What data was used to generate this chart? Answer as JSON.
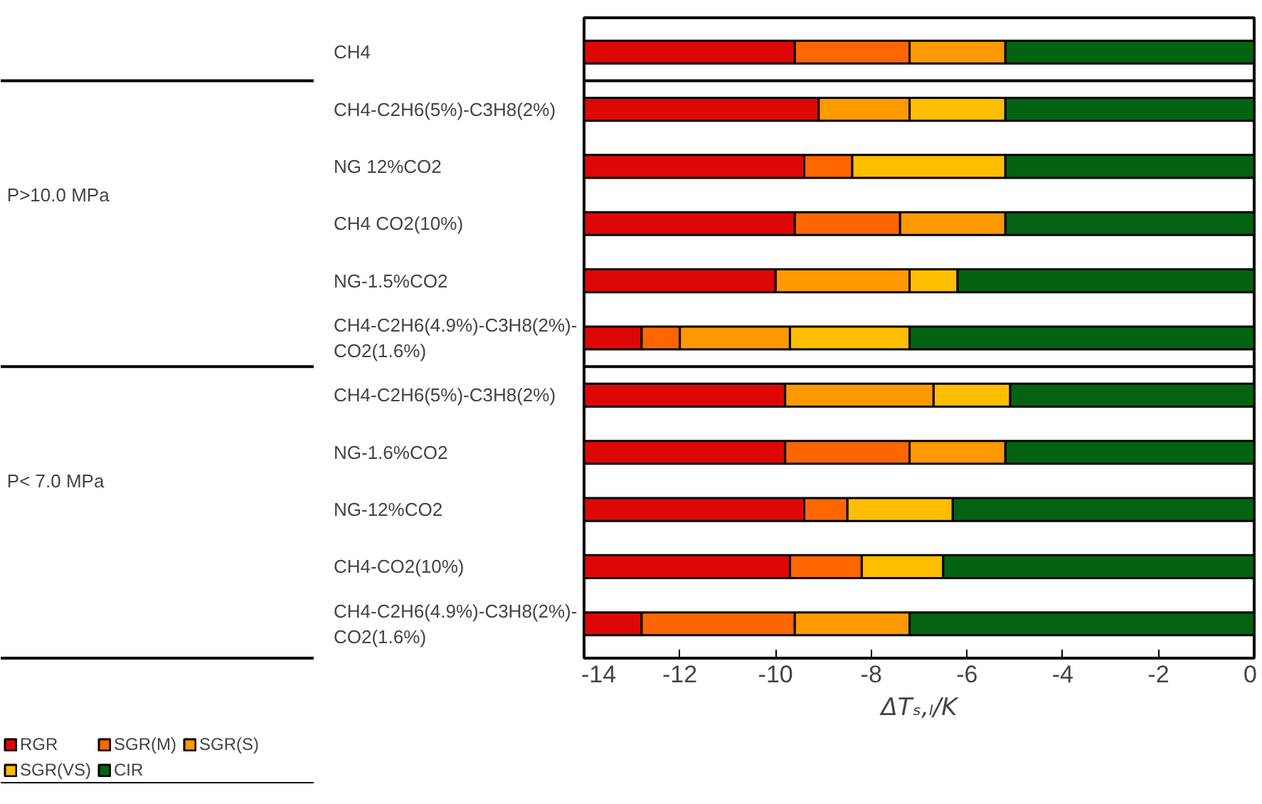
{
  "chart_data": {
    "type": "bar",
    "orientation": "horizontal",
    "stacked": true,
    "categories": [
      "CH4",
      "CH4-C2H6(5%)-C3H8(2%)",
      "NG 12%CO2",
      "CH4 CO2(10%)",
      "NG-1.5%CO2",
      "CH4-C2H6(4.9%)-C3H8(2%)-CO2(1.6%)",
      "CH4-C2H6(5%)-C3H8(2%)",
      "NG-1.6%CO2",
      "NG-12%CO2",
      "CH4-CO2(10%)",
      "CH4-C2H6(4.9%)-C3H8(2%)-CO2(1.6%)"
    ],
    "series": [
      {
        "name": "CIR",
        "color": "#036312",
        "values": [
          -5.2,
          -5.2,
          -5.2,
          -5.2,
          -6.2,
          -7.2,
          -5.1,
          -5.2,
          -6.3,
          -6.5,
          -7.2
        ]
      },
      {
        "name": "SGR(VS)",
        "color": "#ffbf00",
        "values": [
          null,
          -2.0,
          -3.2,
          null,
          -1.0,
          -2.5,
          -1.6,
          null,
          -2.2,
          -1.7,
          null
        ]
      },
      {
        "name": "SGR(S)",
        "color": "#ff9900",
        "values": [
          -2.0,
          -1.9,
          null,
          -2.2,
          -2.8,
          -2.3,
          -3.1,
          -2.0,
          null,
          null,
          -2.4
        ]
      },
      {
        "name": "SGR(M)",
        "color": "#ff6600",
        "values": [
          -2.4,
          null,
          -1.0,
          -2.2,
          null,
          -0.8,
          null,
          -2.6,
          -0.9,
          -1.5,
          -3.2
        ]
      },
      {
        "name": "RGR",
        "color": "#dd0806",
        "values": [
          -4.4,
          -4.9,
          -4.6,
          -4.4,
          -4.0,
          -1.2,
          -4.2,
          -4.2,
          -4.6,
          -4.3,
          -1.2
        ]
      }
    ],
    "xlim": [
      -14,
      0
    ],
    "xticks": [
      -14,
      -12,
      -10,
      -8,
      -6,
      -4,
      -2,
      0
    ],
    "xlabel": "ΔTₛ,ₗ/K",
    "annotations": [
      "P>10.0 MPa",
      "P< 7.0 MPa"
    ],
    "grid": false,
    "legend": "bottom left"
  }
}
